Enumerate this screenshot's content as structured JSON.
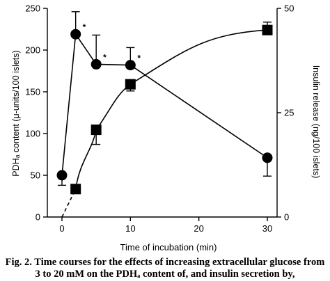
{
  "chart_data": {
    "type": "line",
    "xlabel": "Time of incubation (min)",
    "ylabel_left": "PDHₐ content (μ-units/100 islets)",
    "ylabel_right": "Insulin release (ng/100 islets)",
    "x_ticks": [
      0,
      10,
      20,
      30
    ],
    "y_left_ticks": [
      0,
      50,
      100,
      150,
      200,
      250
    ],
    "y_right_ticks": [
      0,
      25,
      50
    ],
    "xlim": [
      -1,
      32
    ],
    "ylim_left": [
      0,
      250
    ],
    "ylim_right": [
      0,
      50
    ],
    "series": [
      {
        "marker": "circle",
        "axis": "left",
        "x": [
          0,
          2,
          5,
          10,
          30
        ],
        "y": [
          50,
          219,
          183,
          182,
          71
        ],
        "err": [
          12,
          27,
          35,
          21,
          22
        ],
        "err_dir": [
          "down",
          "up",
          "up",
          "up",
          "down"
        ],
        "significance": [
          "",
          "*",
          "*",
          "*",
          ""
        ]
      },
      {
        "marker": "square",
        "axis": "right",
        "x": [
          2,
          5,
          10,
          30
        ],
        "y": [
          6.7,
          20.9,
          31.8,
          44.8
        ],
        "err": [
          0,
          3.5,
          1.6,
          1.9
        ],
        "err_dir": [
          "down",
          "down",
          "down",
          "up"
        ]
      }
    ],
    "caption": [
      "Fig. 2. Time courses for the effects of increasing extracellular glucose from",
      "3 to 20 mM on the PDHₐ content of, and insulin secretion by,"
    ]
  }
}
